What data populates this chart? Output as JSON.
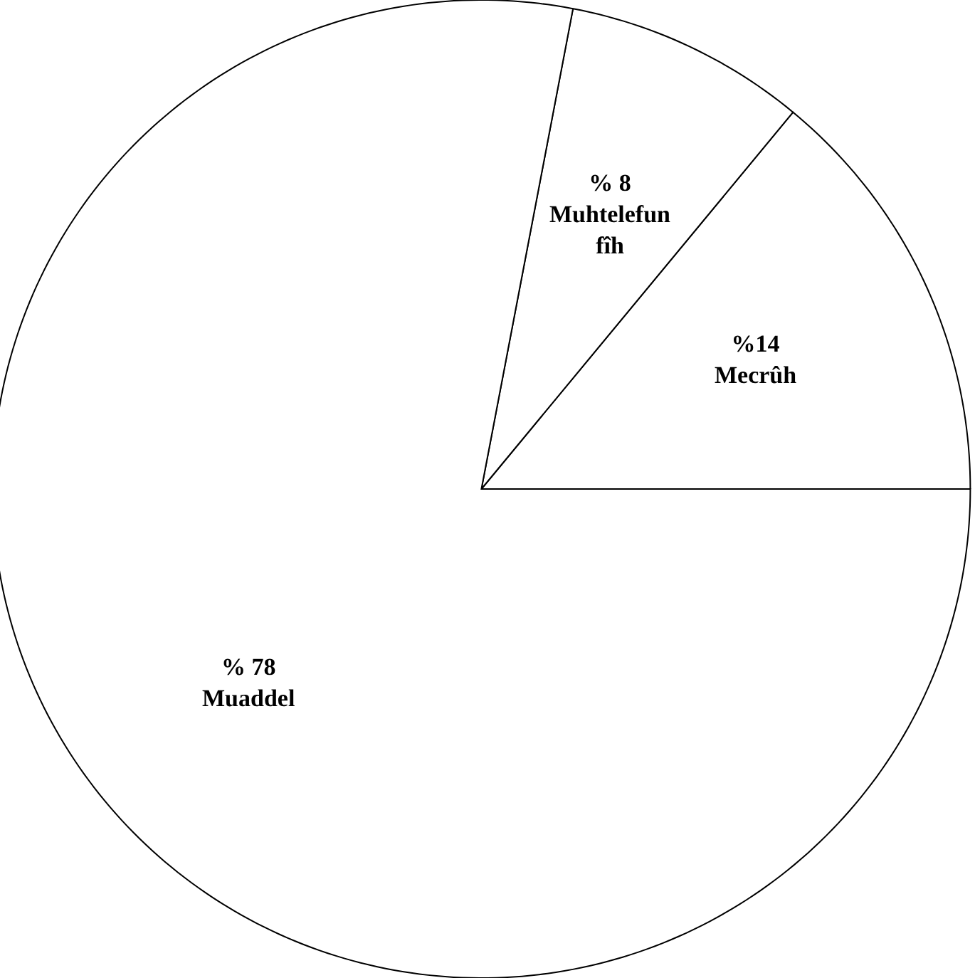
{
  "chart_data": {
    "type": "pie",
    "categories": [
      "Mecrûh",
      "Muhtelefun fîh",
      "Muaddel"
    ],
    "values": [
      14,
      8,
      78
    ],
    "value_labels": [
      "%14",
      "% 8",
      "% 78"
    ],
    "colors": [
      "#ffffff",
      "#ffffff",
      "#ffffff"
    ],
    "legend": false
  }
}
